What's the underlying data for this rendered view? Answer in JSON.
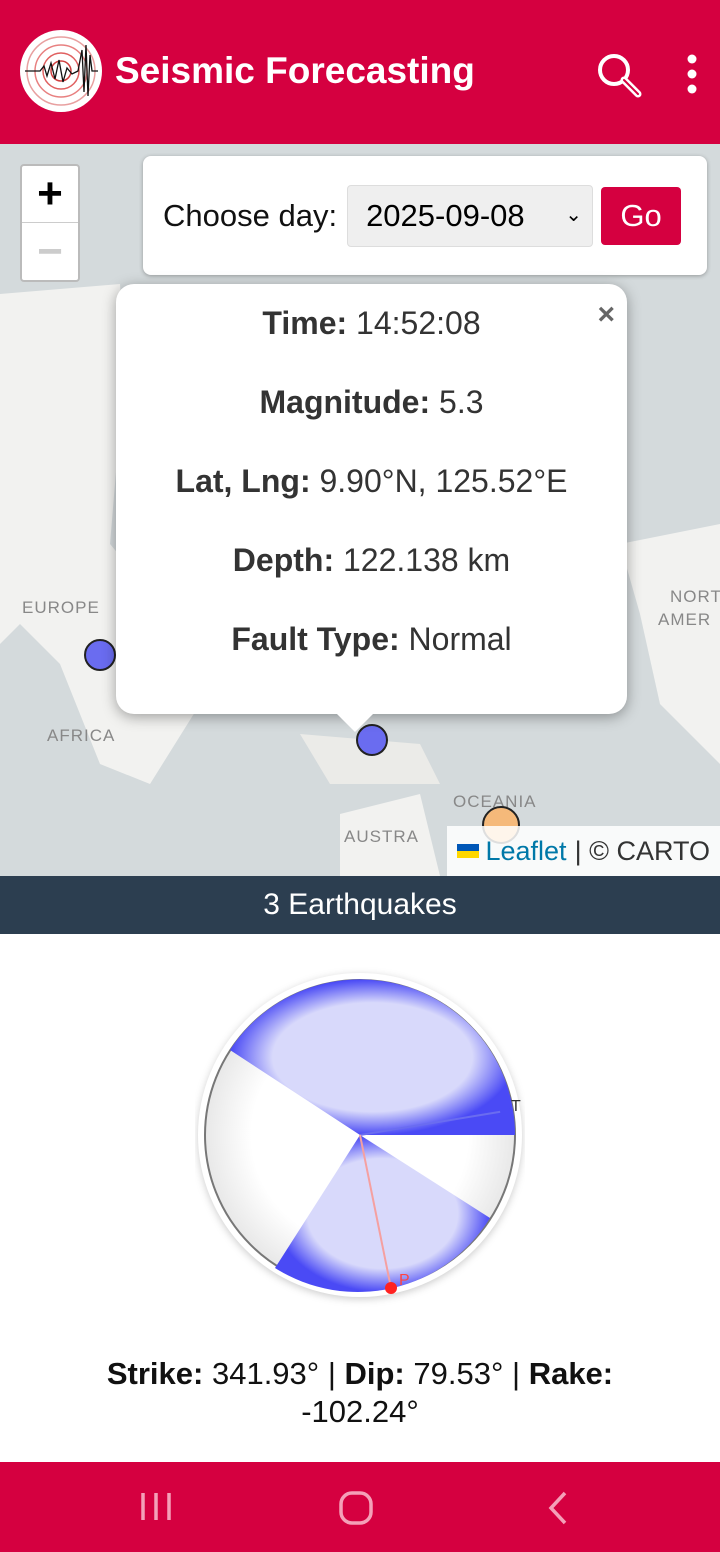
{
  "app": {
    "title": "Seismic Forecasting",
    "brand_color": "#d50040"
  },
  "header": {
    "icons": [
      "seismograph-logo",
      "search-icon",
      "more-vert-icon"
    ]
  },
  "filter": {
    "label": "Choose day:",
    "selected": "2025-09-08",
    "go_label": "Go"
  },
  "zoom": {
    "in": "+",
    "out": "−"
  },
  "map": {
    "labels": [
      "EUROPE",
      "AFRICA",
      "AUSTRA",
      "OCEANIA",
      "NORT",
      "AMER"
    ],
    "markers": [
      {
        "color": "#6a6cf0"
      },
      {
        "color": "#6a6cf0"
      },
      {
        "color": "#f5b97a"
      }
    ]
  },
  "popup": {
    "close": "×",
    "rows": [
      {
        "label": "Time:",
        "value": "14:52:08"
      },
      {
        "label": "Magnitude:",
        "value": "5.3"
      },
      {
        "label": "Lat, Lng:",
        "value": "9.90°N, 125.52°E"
      },
      {
        "label": "Depth:",
        "value": "122.138 km"
      },
      {
        "label": "Fault Type:",
        "value": "Normal"
      }
    ]
  },
  "attribution": {
    "leaflet": "Leaflet",
    "rest": "| © CARTO"
  },
  "summary": {
    "count_text": "3 Earthquakes"
  },
  "beachball": {
    "p_label": "P",
    "t_label": "T",
    "compression_color": "#4a4af5"
  },
  "mechanism": {
    "strike_label": "Strike:",
    "strike": "341.93°",
    "dip_label": "Dip:",
    "dip": "79.53°",
    "rake_label": "Rake:",
    "rake": "-102.24°",
    "sep": "|"
  }
}
